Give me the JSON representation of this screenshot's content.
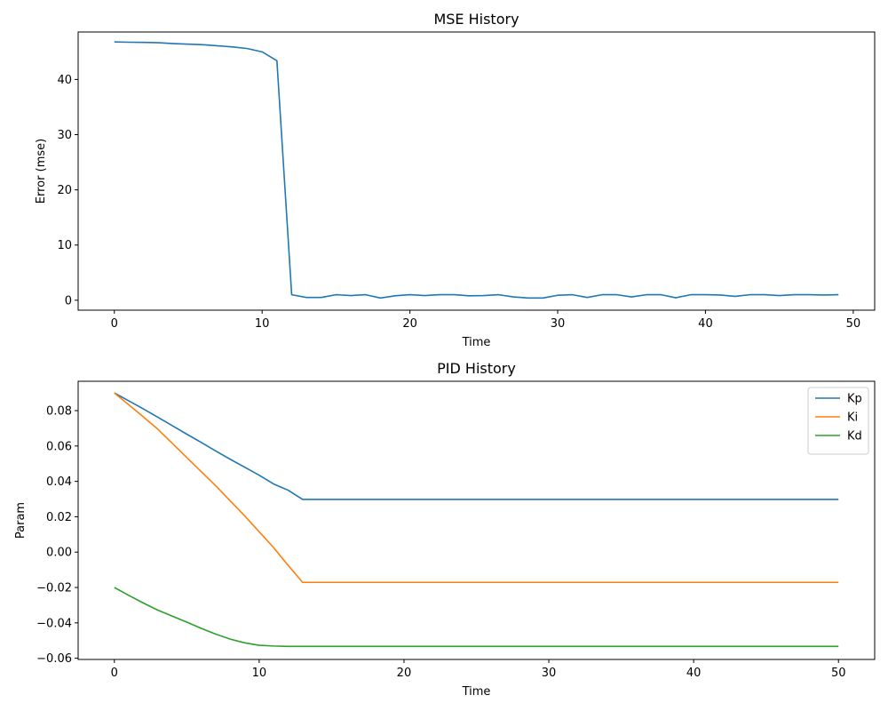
{
  "chart_data": [
    {
      "type": "line",
      "title": "MSE History",
      "xlabel": "Time",
      "ylabel": "Error (mse)",
      "xlim": [
        -2.45,
        51.45
      ],
      "ylim": [
        -1.8,
        48.6
      ],
      "xticks": [
        0,
        10,
        20,
        30,
        40,
        50
      ],
      "yticks": [
        0,
        10,
        20,
        30,
        40
      ],
      "grid": false,
      "legend": "none",
      "series": [
        {
          "color": "#1f77b4",
          "x": [
            0,
            1,
            2,
            3,
            4,
            5,
            6,
            7,
            8,
            9,
            10,
            11,
            12,
            13,
            14,
            15,
            16,
            17,
            18,
            19,
            20,
            21,
            22,
            23,
            24,
            25,
            26,
            27,
            28,
            29,
            30,
            31,
            32,
            33,
            34,
            35,
            36,
            37,
            38,
            39,
            40,
            41,
            42,
            43,
            44,
            45,
            46,
            47,
            48,
            49
          ],
          "y": [
            46.8,
            46.75,
            46.72,
            46.65,
            46.5,
            46.4,
            46.3,
            46.1,
            45.9,
            45.6,
            45.0,
            43.4,
            1.0,
            0.5,
            0.5,
            1.0,
            0.85,
            1.0,
            0.4,
            0.8,
            1.0,
            0.85,
            1.0,
            1.0,
            0.8,
            0.85,
            1.0,
            0.6,
            0.4,
            0.4,
            0.9,
            1.0,
            0.5,
            1.0,
            1.0,
            0.6,
            1.0,
            1.0,
            0.45,
            1.0,
            1.0,
            0.95,
            0.7,
            1.0,
            1.0,
            0.85,
            1.0,
            1.0,
            0.95,
            1.0
          ]
        }
      ]
    },
    {
      "type": "line",
      "title": "PID History",
      "xlabel": "Time",
      "ylabel": "Param",
      "xlim": [
        -2.5,
        52.5
      ],
      "ylim": [
        -0.0607,
        0.0966
      ],
      "xticks": [
        0,
        10,
        20,
        30,
        40,
        50
      ],
      "yticks": [
        -0.06,
        -0.04,
        -0.02,
        0.0,
        0.02,
        0.04,
        0.06,
        0.08
      ],
      "ytick_labels": [
        "−0.06",
        "−0.04",
        "−0.02",
        "0.00",
        "0.02",
        "0.04",
        "0.06",
        "0.08"
      ],
      "grid": false,
      "legend": "top-right",
      "series": [
        {
          "name": "Kp",
          "color": "#1f77b4",
          "x": [
            0,
            1,
            2,
            3,
            4,
            5,
            6,
            7,
            8,
            9,
            10,
            11,
            12,
            13,
            14,
            15,
            20,
            25,
            30,
            35,
            40,
            45,
            50
          ],
          "y": [
            0.09,
            0.0855,
            0.081,
            0.0763,
            0.0715,
            0.0667,
            0.062,
            0.0572,
            0.0525,
            0.048,
            0.0435,
            0.0385,
            0.035,
            0.0298,
            0.0298,
            0.0298,
            0.0298,
            0.0298,
            0.0298,
            0.0298,
            0.0298,
            0.0298,
            0.0298
          ]
        },
        {
          "name": "Ki",
          "color": "#ff7f0e",
          "x": [
            0,
            1,
            2,
            3,
            4,
            5,
            6,
            7,
            8,
            9,
            10,
            11,
            12,
            13,
            14,
            15,
            20,
            25,
            30,
            35,
            40,
            45,
            50
          ],
          "y": [
            0.09,
            0.0833,
            0.0765,
            0.0695,
            0.0615,
            0.0535,
            0.0455,
            0.0375,
            0.029,
            0.0205,
            0.0115,
            0.0025,
            -0.0075,
            -0.0171,
            -0.0171,
            -0.0171,
            -0.0171,
            -0.0171,
            -0.0171,
            -0.0171,
            -0.0171,
            -0.0171,
            -0.0171
          ]
        },
        {
          "name": "Kd",
          "color": "#2ca02c",
          "x": [
            0,
            1,
            2,
            3,
            4,
            5,
            6,
            7,
            8,
            9,
            10,
            11,
            12,
            13,
            14,
            15,
            20,
            25,
            30,
            35,
            40,
            45,
            50
          ],
          "y": [
            -0.02,
            -0.0245,
            -0.0288,
            -0.0328,
            -0.0362,
            -0.0396,
            -0.0431,
            -0.0464,
            -0.0492,
            -0.0513,
            -0.0527,
            -0.0531,
            -0.0533,
            -0.0533,
            -0.0533,
            -0.0533,
            -0.0533,
            -0.0533,
            -0.0533,
            -0.0533,
            -0.0533,
            -0.0533,
            -0.0533
          ]
        }
      ]
    }
  ]
}
